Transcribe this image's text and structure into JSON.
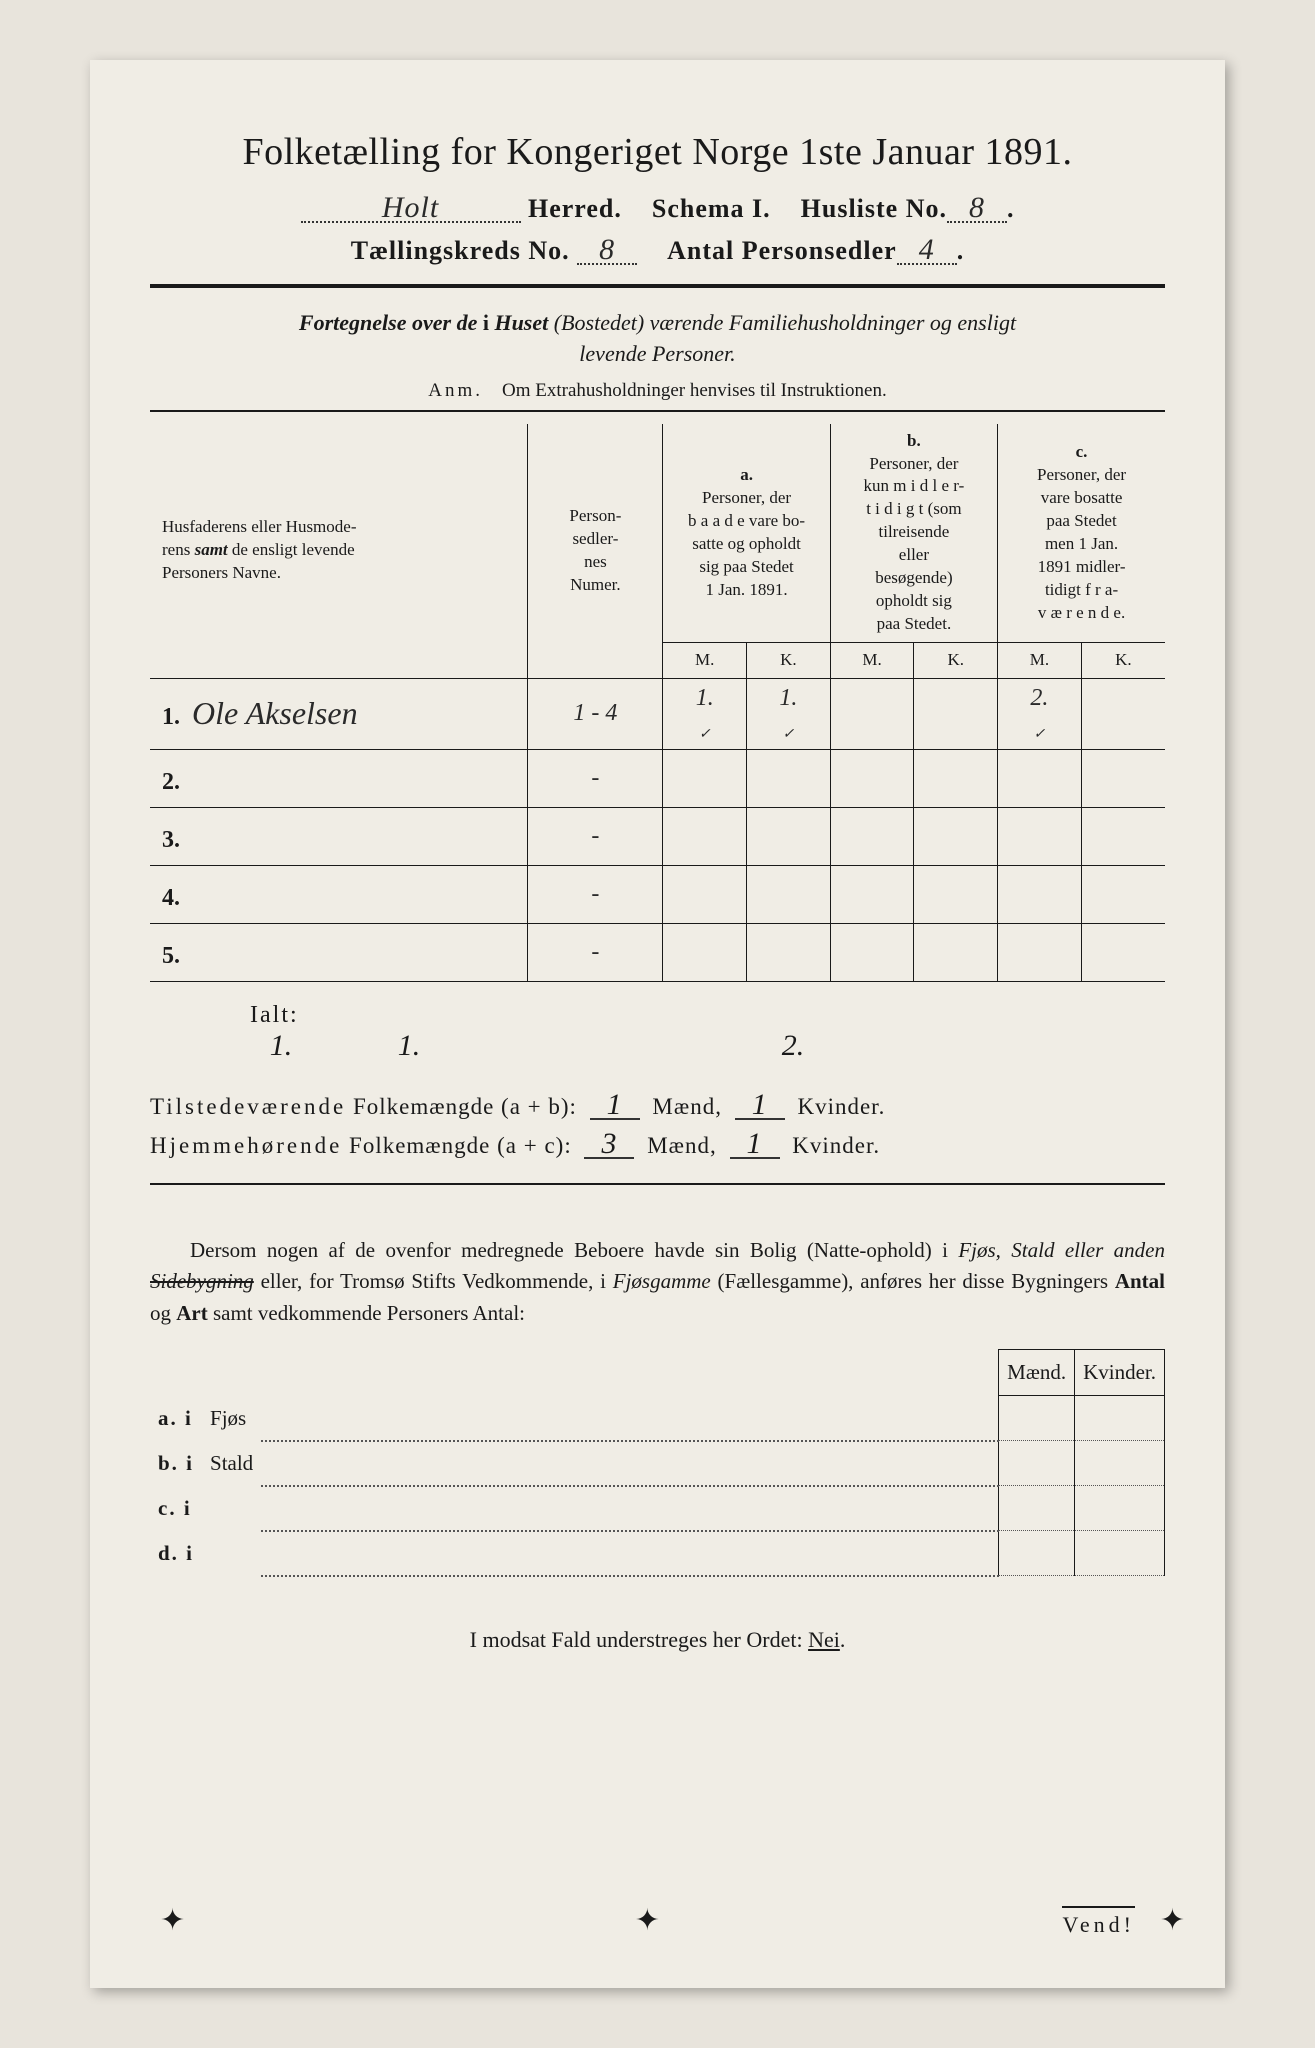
{
  "title": "Folketælling for Kongeriget Norge 1ste Januar 1891.",
  "header": {
    "herred_value": "Holt",
    "herred_label": "Herred.",
    "schema_label": "Schema I.",
    "husliste_label": "Husliste No.",
    "husliste_value": "8",
    "kreds_label": "Tællingskreds No.",
    "kreds_value": "8",
    "antal_label": "Antal Personsedler",
    "antal_value": "4"
  },
  "subtitle": "Fortegnelse over de i Huset (Bostedet) værende Familiehusholdninger og ensligt levende Personer.",
  "anm": {
    "label": "Anm.",
    "text": "Om Extrahusholdninger henvises til Instruktionen."
  },
  "table": {
    "col1": "Husfaderens eller Husmoderens samt de ensligt levende Personers Navne.",
    "col2": "Personsedlernes Numer.",
    "col_a_label": "a.",
    "col_a": "Personer, der baade vare bosatte og opholdt sig paa Stedet 1 Jan. 1891.",
    "col_b_label": "b.",
    "col_b": "Personer, der kun midlertidigt (som tilreisende eller besøgende) opholdt sig paa Stedet.",
    "col_c_label": "c.",
    "col_c": "Personer, der vare bosatte paa Stedet men 1 Jan. 1891 midlertidigt fraværende.",
    "mk_m": "M.",
    "mk_k": "K.",
    "rows": [
      {
        "num": "1.",
        "name": "Ole Akselsen",
        "numer": "1 - 4",
        "am": "1.",
        "ak": "1.",
        "bm": "",
        "bk": "",
        "cm": "2.",
        "ck": ""
      },
      {
        "num": "2.",
        "name": "",
        "numer": "-",
        "am": "",
        "ak": "",
        "bm": "",
        "bk": "",
        "cm": "",
        "ck": ""
      },
      {
        "num": "3.",
        "name": "",
        "numer": "-",
        "am": "",
        "ak": "",
        "bm": "",
        "bk": "",
        "cm": "",
        "ck": ""
      },
      {
        "num": "4.",
        "name": "",
        "numer": "-",
        "am": "",
        "ak": "",
        "bm": "",
        "bk": "",
        "cm": "",
        "ck": ""
      },
      {
        "num": "5.",
        "name": "",
        "numer": "-",
        "am": "",
        "ak": "",
        "bm": "",
        "bk": "",
        "cm": "",
        "ck": ""
      }
    ],
    "ialt_label": "Ialt:",
    "ialt": {
      "am": "1.",
      "ak": "1.",
      "bm": "",
      "bk": "",
      "cm": "2.",
      "ck": ""
    }
  },
  "summary": {
    "line1_label": "Tilstedeværende Folkemængde (a + b):",
    "line1_m": "1",
    "line1_mlabel": "Mænd,",
    "line1_k": "1",
    "line1_klabel": "Kvinder.",
    "line2_label": "Hjemmehørende Folkemængde (a + c):",
    "line2_m": "3",
    "line2_k": "1"
  },
  "paragraph": "Dersom nogen af de ovenfor medregnede Beboere havde sin Bolig (Natteophold) i Fjøs, Stald eller anden Sidebygning eller, for Tromsø Stifts Vedkommende, i Fjøsgamme (Fællesgamme), anføres her disse Bygningers Antal og Art samt vedkommende Personers Antal:",
  "subtable": {
    "maend": "Mænd.",
    "kvinder": "Kvinder.",
    "rows": [
      {
        "label": "a.  i",
        "text": "Fjøs"
      },
      {
        "label": "b.  i",
        "text": "Stald"
      },
      {
        "label": "c.  i",
        "text": ""
      },
      {
        "label": "d.  i",
        "text": ""
      }
    ]
  },
  "footer": "I modsat Fald understreges her Ordet: Nei.",
  "vend": "Vend!"
}
